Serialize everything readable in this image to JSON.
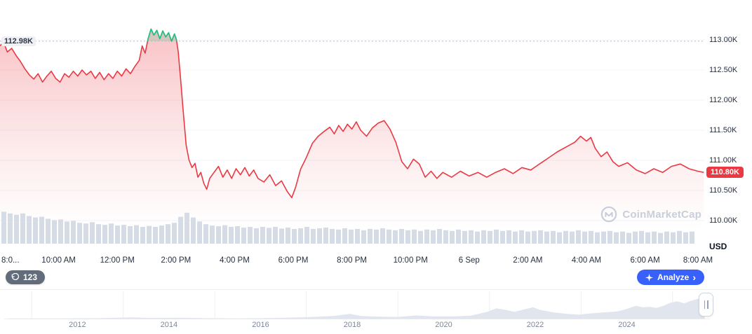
{
  "colors": {
    "red": "#ea3943",
    "green": "#16c784",
    "blue": "#3861fb",
    "grid": "#f2f4f7",
    "dotted_ref": "#b3bbca",
    "volume_bar": "#d5dce6",
    "nav_fill": "#e0e5ee",
    "nav_grid": "#eceff3",
    "watermark": "#c8cfda"
  },
  "ui": {
    "annotation_count": "123",
    "analyze_label": "Analyze",
    "analyze_chevron": "›",
    "watermark_text": "CoinMarketCap"
  },
  "chart_data": [
    {
      "id": "price",
      "type": "line",
      "unit": "USD",
      "previous_close": 112.98,
      "previous_close_label": "112.98K",
      "current_price": 110.8,
      "current_price_label": "110.80K",
      "ylim": [
        109.9,
        113.4
      ],
      "y_ticks": [
        {
          "label": "113.00K",
          "value": 113.0
        },
        {
          "label": "112.50K",
          "value": 112.5
        },
        {
          "label": "112.00K",
          "value": 112.0
        },
        {
          "label": "111.50K",
          "value": 111.5
        },
        {
          "label": "111.00K",
          "value": 111.0
        },
        {
          "label": "110.50K",
          "value": 110.5
        },
        {
          "label": "110.00K",
          "value": 110.0
        }
      ],
      "x_ticks": [
        {
          "label": "8:0...",
          "t": 0
        },
        {
          "label": "10:00 AM",
          "t": 2
        },
        {
          "label": "12:00 PM",
          "t": 4
        },
        {
          "label": "2:00 PM",
          "t": 6
        },
        {
          "label": "4:00 PM",
          "t": 8
        },
        {
          "label": "6:00 PM",
          "t": 10
        },
        {
          "label": "8:00 PM",
          "t": 12
        },
        {
          "label": "10:00 PM",
          "t": 14
        },
        {
          "label": "6 Sep",
          "t": 16
        },
        {
          "label": "2:00 AM",
          "t": 18
        },
        {
          "label": "4:00 AM",
          "t": 20
        },
        {
          "label": "6:00 AM",
          "t": 22
        },
        {
          "label": "8:00 AM",
          "t": 24
        }
      ],
      "points": [
        [
          0,
          112.9
        ],
        [
          0.12,
          112.97
        ],
        [
          0.25,
          112.8
        ],
        [
          0.4,
          112.86
        ],
        [
          0.55,
          112.74
        ],
        [
          0.7,
          112.64
        ],
        [
          0.85,
          112.52
        ],
        [
          1.0,
          112.42
        ],
        [
          1.15,
          112.35
        ],
        [
          1.3,
          112.44
        ],
        [
          1.45,
          112.3
        ],
        [
          1.6,
          112.4
        ],
        [
          1.75,
          112.48
        ],
        [
          1.9,
          112.36
        ],
        [
          2.05,
          112.3
        ],
        [
          2.2,
          112.44
        ],
        [
          2.35,
          112.38
        ],
        [
          2.5,
          112.48
        ],
        [
          2.65,
          112.4
        ],
        [
          2.8,
          112.5
        ],
        [
          2.95,
          112.42
        ],
        [
          3.1,
          112.48
        ],
        [
          3.25,
          112.36
        ],
        [
          3.4,
          112.46
        ],
        [
          3.55,
          112.34
        ],
        [
          3.7,
          112.44
        ],
        [
          3.85,
          112.36
        ],
        [
          4.0,
          112.48
        ],
        [
          4.15,
          112.4
        ],
        [
          4.3,
          112.52
        ],
        [
          4.45,
          112.44
        ],
        [
          4.6,
          112.56
        ],
        [
          4.75,
          112.66
        ],
        [
          4.85,
          112.9
        ],
        [
          4.95,
          112.78
        ],
        [
          5.05,
          113.02
        ],
        [
          5.15,
          113.18
        ],
        [
          5.25,
          113.08
        ],
        [
          5.35,
          113.16
        ],
        [
          5.45,
          113.02
        ],
        [
          5.55,
          113.15
        ],
        [
          5.65,
          113.05
        ],
        [
          5.75,
          113.12
        ],
        [
          5.85,
          112.98
        ],
        [
          5.95,
          113.1
        ],
        [
          6.02,
          113.0
        ],
        [
          6.08,
          112.8
        ],
        [
          6.15,
          112.4
        ],
        [
          6.25,
          111.8
        ],
        [
          6.35,
          111.25
        ],
        [
          6.45,
          111.0
        ],
        [
          6.55,
          110.88
        ],
        [
          6.65,
          110.95
        ],
        [
          6.75,
          110.72
        ],
        [
          6.85,
          110.8
        ],
        [
          6.95,
          110.62
        ],
        [
          7.05,
          110.52
        ],
        [
          7.15,
          110.7
        ],
        [
          7.3,
          110.8
        ],
        [
          7.45,
          110.9
        ],
        [
          7.6,
          110.72
        ],
        [
          7.75,
          110.84
        ],
        [
          7.9,
          110.7
        ],
        [
          8.05,
          110.86
        ],
        [
          8.2,
          110.76
        ],
        [
          8.35,
          110.88
        ],
        [
          8.5,
          110.74
        ],
        [
          8.65,
          110.84
        ],
        [
          8.8,
          110.7
        ],
        [
          9.0,
          110.64
        ],
        [
          9.2,
          110.76
        ],
        [
          9.4,
          110.58
        ],
        [
          9.6,
          110.66
        ],
        [
          9.8,
          110.48
        ],
        [
          9.95,
          110.38
        ],
        [
          10.08,
          110.55
        ],
        [
          10.25,
          110.85
        ],
        [
          10.45,
          111.05
        ],
        [
          10.65,
          111.28
        ],
        [
          10.85,
          111.4
        ],
        [
          11.05,
          111.48
        ],
        [
          11.25,
          111.55
        ],
        [
          11.4,
          111.44
        ],
        [
          11.55,
          111.58
        ],
        [
          11.7,
          111.48
        ],
        [
          11.85,
          111.6
        ],
        [
          12.0,
          111.52
        ],
        [
          12.15,
          111.64
        ],
        [
          12.3,
          111.5
        ],
        [
          12.5,
          111.4
        ],
        [
          12.7,
          111.54
        ],
        [
          12.9,
          111.62
        ],
        [
          13.1,
          111.66
        ],
        [
          13.3,
          111.52
        ],
        [
          13.5,
          111.3
        ],
        [
          13.7,
          110.98
        ],
        [
          13.9,
          110.86
        ],
        [
          14.1,
          111.02
        ],
        [
          14.3,
          110.94
        ],
        [
          14.5,
          110.72
        ],
        [
          14.7,
          110.82
        ],
        [
          14.9,
          110.7
        ],
        [
          15.1,
          110.8
        ],
        [
          15.4,
          110.72
        ],
        [
          15.7,
          110.82
        ],
        [
          16.0,
          110.74
        ],
        [
          16.3,
          110.8
        ],
        [
          16.6,
          110.72
        ],
        [
          16.9,
          110.8
        ],
        [
          17.2,
          110.86
        ],
        [
          17.5,
          110.78
        ],
        [
          17.8,
          110.88
        ],
        [
          18.1,
          110.84
        ],
        [
          18.4,
          110.94
        ],
        [
          18.7,
          111.04
        ],
        [
          19.0,
          111.14
        ],
        [
          19.3,
          111.22
        ],
        [
          19.6,
          111.3
        ],
        [
          19.8,
          111.4
        ],
        [
          20.0,
          111.32
        ],
        [
          20.15,
          111.38
        ],
        [
          20.3,
          111.2
        ],
        [
          20.5,
          111.06
        ],
        [
          20.7,
          111.14
        ],
        [
          20.9,
          110.98
        ],
        [
          21.1,
          110.9
        ],
        [
          21.4,
          110.96
        ],
        [
          21.7,
          110.84
        ],
        [
          22.0,
          110.78
        ],
        [
          22.3,
          110.86
        ],
        [
          22.6,
          110.8
        ],
        [
          22.9,
          110.9
        ],
        [
          23.2,
          110.94
        ],
        [
          23.5,
          110.86
        ],
        [
          23.8,
          110.82
        ],
        [
          24.0,
          110.8
        ]
      ]
    },
    {
      "id": "volume",
      "type": "bar",
      "values": [
        0.95,
        0.9,
        0.86,
        0.9,
        0.82,
        0.78,
        0.8,
        0.74,
        0.7,
        0.72,
        0.66,
        0.68,
        0.62,
        0.6,
        0.64,
        0.58,
        0.56,
        0.6,
        0.54,
        0.56,
        0.52,
        0.55,
        0.5,
        0.53,
        0.5,
        0.54,
        0.58,
        0.62,
        0.8,
        0.92,
        0.78,
        0.66,
        0.58,
        0.54,
        0.52,
        0.55,
        0.5,
        0.52,
        0.48,
        0.5,
        0.46,
        0.5,
        0.47,
        0.5,
        0.45,
        0.48,
        0.44,
        0.46,
        0.5,
        0.44,
        0.46,
        0.48,
        0.44,
        0.42,
        0.46,
        0.42,
        0.44,
        0.4,
        0.44,
        0.42,
        0.46,
        0.42,
        0.4,
        0.44,
        0.4,
        0.42,
        0.38,
        0.42,
        0.4,
        0.44,
        0.4,
        0.38,
        0.42,
        0.38,
        0.4,
        0.36,
        0.4,
        0.38,
        0.42,
        0.38,
        0.4,
        0.36,
        0.4,
        0.36,
        0.38,
        0.4,
        0.36,
        0.38,
        0.34,
        0.38,
        0.36,
        0.4,
        0.36,
        0.38,
        0.34,
        0.36,
        0.38,
        0.34,
        0.36,
        0.32,
        0.36,
        0.38,
        0.34,
        0.36,
        0.32,
        0.36,
        0.34,
        0.38,
        0.34,
        0.36
      ]
    },
    {
      "id": "history_navigator",
      "type": "area",
      "xlim": [
        2010.4,
        2025.8
      ],
      "x_ticks": [
        2012,
        2014,
        2016,
        2018,
        2020,
        2022,
        2024
      ],
      "points": [
        [
          2010.5,
          0.02
        ],
        [
          2011.5,
          0.02
        ],
        [
          2012.5,
          0.03
        ],
        [
          2013.2,
          0.06
        ],
        [
          2013.6,
          0.04
        ],
        [
          2014.2,
          0.05
        ],
        [
          2014.8,
          0.03
        ],
        [
          2015.5,
          0.02
        ],
        [
          2016.3,
          0.04
        ],
        [
          2017.0,
          0.07
        ],
        [
          2017.6,
          0.12
        ],
        [
          2017.95,
          0.2
        ],
        [
          2018.2,
          0.12
        ],
        [
          2018.6,
          0.09
        ],
        [
          2019.0,
          0.08
        ],
        [
          2019.4,
          0.14
        ],
        [
          2019.8,
          0.1
        ],
        [
          2020.2,
          0.1
        ],
        [
          2020.6,
          0.13
        ],
        [
          2020.95,
          0.28
        ],
        [
          2021.15,
          0.42
        ],
        [
          2021.35,
          0.36
        ],
        [
          2021.55,
          0.28
        ],
        [
          2021.8,
          0.4
        ],
        [
          2021.95,
          0.46
        ],
        [
          2022.1,
          0.36
        ],
        [
          2022.4,
          0.26
        ],
        [
          2022.7,
          0.2
        ],
        [
          2022.95,
          0.17
        ],
        [
          2023.2,
          0.22
        ],
        [
          2023.5,
          0.26
        ],
        [
          2023.8,
          0.3
        ],
        [
          2024.0,
          0.4
        ],
        [
          2024.2,
          0.52
        ],
        [
          2024.35,
          0.46
        ],
        [
          2024.5,
          0.48
        ],
        [
          2024.65,
          0.44
        ],
        [
          2024.8,
          0.52
        ],
        [
          2024.95,
          0.64
        ],
        [
          2025.1,
          0.7
        ],
        [
          2025.25,
          0.62
        ],
        [
          2025.4,
          0.72
        ],
        [
          2025.55,
          0.8
        ],
        [
          2025.7,
          0.76
        ]
      ]
    }
  ]
}
